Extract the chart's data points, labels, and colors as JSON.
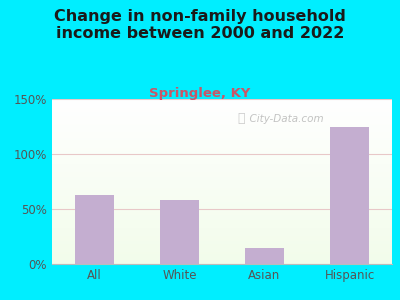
{
  "title": "Change in non-family household\nincome between 2000 and 2022",
  "subtitle": "Springlee, KY",
  "categories": [
    "All",
    "White",
    "Asian",
    "Hispanic"
  ],
  "values": [
    63,
    58,
    15,
    125
  ],
  "bar_color": "#c4aed0",
  "title_fontsize": 11.5,
  "subtitle_fontsize": 9.5,
  "subtitle_color": "#cc5566",
  "title_color": "#1a1a1a",
  "background_outer": "#00eeff",
  "ylim": [
    0,
    150
  ],
  "yticks": [
    0,
    50,
    100,
    150
  ],
  "grid_color": "#e8c8c8",
  "watermark": "City-Data.com"
}
